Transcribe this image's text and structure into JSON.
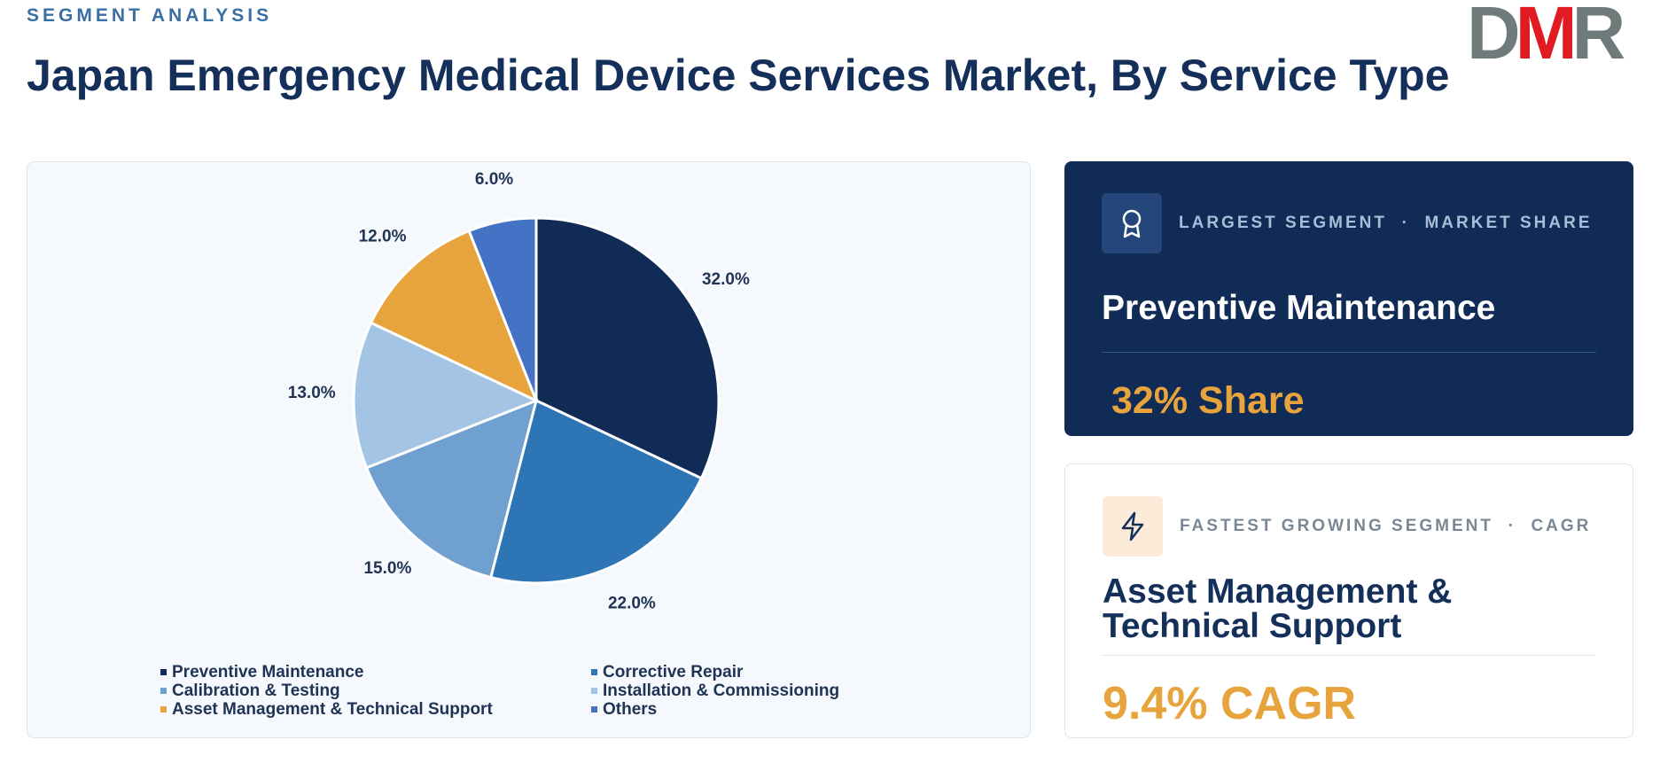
{
  "header": {
    "eyebrow": "SEGMENT ANALYSIS",
    "title": "Japan Emergency Medical Device Services Market, By Service Type",
    "logo": "DMR"
  },
  "chart_data": {
    "type": "pie",
    "categories": [
      "Preventive Maintenance",
      "Corrective Repair",
      "Calibration & Testing",
      "Installation & Commissioning",
      "Asset Management & Technical Support",
      "Others"
    ],
    "values": [
      32,
      22,
      15,
      13,
      12,
      6
    ],
    "value_labels": [
      "32.0%",
      "22.0%",
      "15.0%",
      "13.0%",
      "12.0%",
      "6.0%"
    ],
    "colors": [
      "#112b57",
      "#2e75b6",
      "#6fa0d0",
      "#a3c4e4",
      "#e8a43c",
      "#4472c4"
    ]
  },
  "largest": {
    "label": "LARGEST SEGMENT  ·  MARKET SHARE",
    "name": "Preventive Maintenance",
    "value": "32% Share"
  },
  "fastest": {
    "label": "FASTEST GROWING SEGMENT  ·  CAGR",
    "name": "Asset Management & Technical Support",
    "value": "9.4% CAGR"
  }
}
